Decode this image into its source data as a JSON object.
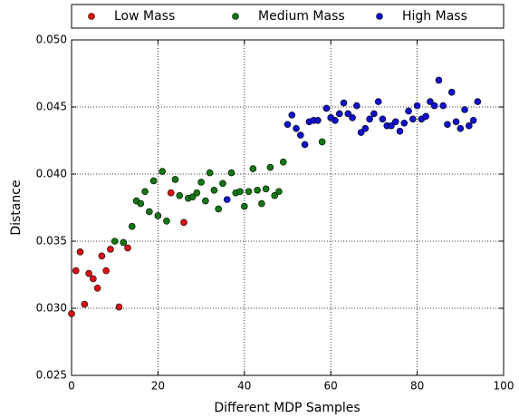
{
  "chart_data": {
    "type": "scatter",
    "xlabel": "Different MDP Samples",
    "ylabel": "Distance",
    "xlim": [
      0,
      100
    ],
    "xticks": [
      0,
      20,
      40,
      60,
      80,
      100
    ],
    "ylim": [
      0.025,
      0.05
    ],
    "yticks": [
      0.025,
      {
        "value": 0.03,
        "label": "0.030"
      },
      0.035,
      {
        "value": 0.04,
        "label": "0.040"
      },
      0.045,
      {
        "value": 0.05,
        "label": "0.050"
      }
    ],
    "grid": true,
    "legend": "top",
    "series": [
      {
        "name": "Low Mass",
        "color": "#dd1111",
        "x": [
          0,
          1,
          2,
          3,
          4,
          5,
          6,
          7,
          8,
          9,
          11,
          13,
          23,
          26
        ],
        "values": [
          0.0296,
          0.0328,
          0.0342,
          0.0303,
          0.0326,
          0.0322,
          0.0315,
          0.0339,
          0.0328,
          0.0344,
          0.0301,
          0.0345,
          0.0386,
          0.0364
        ]
      },
      {
        "name": "Medium Mass",
        "color": "#117711",
        "x": [
          10,
          12,
          14,
          15,
          16,
          17,
          18,
          19,
          20,
          21,
          22,
          24,
          25,
          27,
          28,
          29,
          30,
          31,
          32,
          33,
          34,
          35,
          37,
          38,
          39,
          40,
          41,
          42,
          43,
          44,
          45,
          46,
          47,
          48,
          49,
          58
        ],
        "values": [
          0.035,
          0.0349,
          0.0361,
          0.038,
          0.0378,
          0.0387,
          0.0372,
          0.0395,
          0.0369,
          0.0402,
          0.0365,
          0.0396,
          0.0384,
          0.0382,
          0.0383,
          0.0386,
          0.0394,
          0.038,
          0.0401,
          0.0388,
          0.0374,
          0.0393,
          0.0401,
          0.0386,
          0.0387,
          0.0376,
          0.0387,
          0.0404,
          0.0388,
          0.0378,
          0.0389,
          0.0405,
          0.0384,
          0.0387,
          0.0409,
          0.0424
        ]
      },
      {
        "name": "High Mass",
        "color": "#1111cc",
        "x": [
          36,
          50,
          51,
          52,
          53,
          54,
          55,
          56,
          57,
          59,
          60,
          61,
          62,
          63,
          64,
          65,
          66,
          67,
          68,
          69,
          70,
          71,
          72,
          73,
          74,
          75,
          76,
          77,
          78,
          79,
          80,
          81,
          82,
          83,
          84,
          85,
          86,
          87,
          88,
          89,
          90,
          91,
          92,
          93,
          94
        ],
        "values": [
          0.0381,
          0.0437,
          0.0444,
          0.0434,
          0.0429,
          0.0422,
          0.0439,
          0.044,
          0.044,
          0.0449,
          0.0442,
          0.044,
          0.0445,
          0.0453,
          0.0445,
          0.0442,
          0.0451,
          0.0431,
          0.0434,
          0.0441,
          0.0445,
          0.0454,
          0.0441,
          0.0436,
          0.0436,
          0.0439,
          0.0432,
          0.0438,
          0.0447,
          0.0441,
          0.0451,
          0.0441,
          0.0443,
          0.0454,
          0.0451,
          0.047,
          0.0451,
          0.0437,
          0.0461,
          0.0439,
          0.0434,
          0.0448,
          0.0436,
          0.044,
          0.0454
        ]
      }
    ]
  }
}
